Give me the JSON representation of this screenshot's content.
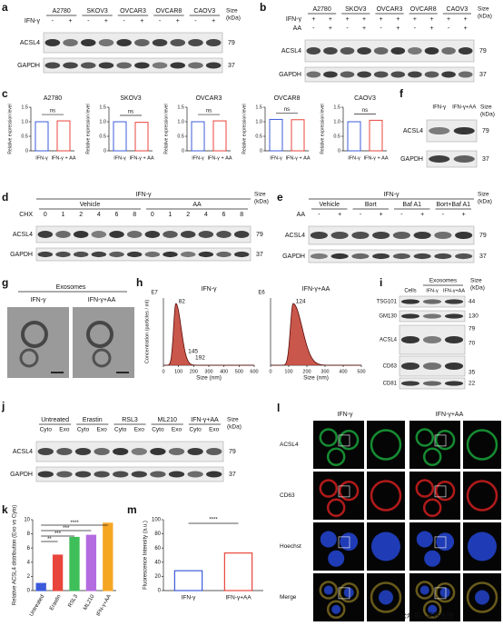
{
  "a": {
    "letter": "a",
    "groups": [
      "A2780",
      "SKOV3",
      "OVCAR3",
      "OVCAR8",
      "CAOV3"
    ],
    "rows": [
      {
        "label": "IFN-γ",
        "cells": [
          "-",
          "+",
          "-",
          "+",
          "-",
          "+",
          "-",
          "+",
          "-",
          "+"
        ]
      }
    ],
    "size_label": [
      "Size",
      "(kDa)"
    ],
    "blots": [
      {
        "label": "ACSL4",
        "size": 79
      },
      {
        "label": "GAPDH",
        "size": 37
      }
    ]
  },
  "b": {
    "letter": "b",
    "groups": [
      "A2780",
      "SKOV3",
      "OVCAR3",
      "OVCAR8",
      "CAOV3"
    ],
    "rows": [
      {
        "label": "IFN-γ",
        "cells": [
          "+",
          "+",
          "+",
          "+",
          "+",
          "+",
          "+",
          "+",
          "+",
          "+"
        ]
      },
      {
        "label": "AA",
        "cells": [
          "-",
          "+",
          "-",
          "+",
          "-",
          "+",
          "-",
          "+",
          "-",
          "+"
        ]
      }
    ],
    "size_label": [
      "Size",
      "(kDa)"
    ],
    "blots": [
      {
        "label": "ACSL4",
        "size": 79
      },
      {
        "label": "GAPDH",
        "size": 37
      }
    ]
  },
  "c": {
    "letter": "c",
    "y_label": "Relative expression level",
    "ylim": [
      0,
      1.5
    ],
    "yticks": [
      0,
      0.5,
      {
        "value": 1,
        "label": "1.0"
      },
      1.5
    ],
    "categories": [
      "IFN-γ",
      "IFN-γ + AA"
    ],
    "colors": [
      "#3b5bdb",
      "#e8453c"
    ],
    "charts": [
      {
        "title": "A2780",
        "values": [
          1.0,
          1.03
        ],
        "annotation": "ns"
      },
      {
        "title": "SKOV3",
        "values": [
          1.0,
          0.98
        ],
        "annotation": "ns"
      },
      {
        "title": "OVCAR3",
        "values": [
          1.0,
          1.03
        ],
        "annotation": "ns"
      },
      {
        "title": "OVCAR8",
        "values": [
          1.08,
          1.07
        ],
        "annotation": "ns"
      },
      {
        "title": "CAOV3",
        "values": [
          1.0,
          1.05
        ],
        "annotation": "ns"
      }
    ]
  },
  "d": {
    "letter": "d",
    "header": "IFN-γ",
    "groups": [
      "Vehicle",
      "AA"
    ],
    "rows": [
      {
        "label": "CHX",
        "cells": [
          0,
          1,
          2,
          4,
          6,
          8,
          0,
          1,
          2,
          4,
          6,
          8
        ]
      }
    ],
    "size_label": [
      "Size",
      "(kDa)"
    ],
    "blots": [
      {
        "label": "ACSL4",
        "size": 79
      },
      {
        "label": "GAPDH",
        "size": 37
      }
    ]
  },
  "e": {
    "letter": "e",
    "header": "IFN-γ",
    "groups": [
      "Vehicle",
      "Bort",
      "Baf A1",
      "Bort+Baf A1"
    ],
    "rows": [
      {
        "label": "AA",
        "cells": [
          "-",
          "+",
          "-",
          "+",
          "-",
          "+",
          "-",
          "+"
        ]
      }
    ],
    "size_label": [
      "Size",
      "(kDa)"
    ],
    "blots": [
      {
        "label": "ACSL4",
        "size": 79
      },
      {
        "label": "GAPDH",
        "size": 37
      }
    ]
  },
  "f": {
    "letter": "f",
    "groups": [
      "IFN-γ",
      "IFN-γ+AA"
    ],
    "size_label": [
      "Size",
      "(kDa)"
    ],
    "blots": [
      {
        "label": "ACSL4",
        "size": 79
      },
      {
        "label": "GAPDH",
        "size": 37
      }
    ]
  },
  "g": {
    "letter": "g",
    "title": "Exosomes",
    "columns": [
      "IFN-γ",
      "IFN-γ+AA"
    ]
  },
  "h": {
    "letter": "h",
    "y_label": "Concentration (particles / ml)",
    "x_label": "Size (nm)",
    "plots": [
      {
        "title": "IFN-γ",
        "exponent": "E7",
        "peaks": [
          82,
          145,
          192
        ],
        "xlim": [
          0,
          600
        ],
        "xticks": [
          0,
          100,
          200,
          300,
          400,
          500,
          600
        ]
      },
      {
        "title": "IFN-γ+AA",
        "exponent": "E6",
        "peaks": [
          124
        ],
        "xlim": [
          0,
          500
        ],
        "xticks": [
          0,
          100,
          200,
          300,
          400,
          500
        ]
      }
    ]
  },
  "i": {
    "letter": "i",
    "cells_label": "Cells",
    "exo_label": "Exosomes",
    "exo_columns": [
      "IFN-γ",
      "IFN-γ+AA"
    ],
    "size_label": [
      "Size",
      "(kDa)"
    ],
    "blots": [
      "TSG101",
      "GM130",
      "ACSL4",
      "CD63",
      "CD81"
    ],
    "sizes": [
      44,
      130,
      79,
      70,
      35,
      22
    ]
  },
  "j": {
    "letter": "j",
    "groups": [
      "Untreated",
      "Erastin",
      "RSL3",
      "ML210",
      "IFN-γ+AA"
    ],
    "rows": [
      {
        "cells": [
          "Cyto",
          "Exo",
          "Cyto",
          "Exo",
          "Cyto",
          "Exo",
          "Cyto",
          "Exo",
          "Cyto",
          "Exo"
        ]
      }
    ],
    "size_label": [
      "Size",
      "(kDa)"
    ],
    "blots": [
      {
        "label": "ACSL4",
        "size": 79
      },
      {
        "label": "GAPDH",
        "size": 37
      }
    ]
  },
  "k": {
    "letter": "k",
    "y_label": "Relative ACSL4 distribution (Exo vs Cyto)",
    "ylim": [
      0,
      10
    ],
    "yticks": [
      0,
      2,
      4,
      6,
      8,
      10
    ],
    "categories": [
      "Untreated",
      "Erastin",
      "RSL3",
      "ML210",
      "IFN-γ+AA"
    ],
    "values": [
      1,
      5,
      7.5,
      7.8,
      9.5
    ],
    "colors": [
      "#3b5bdb",
      "#e8453c",
      "#3fbf5a",
      "#b46be0",
      "#f5a623"
    ],
    "annotations": [
      "**",
      "***",
      "***",
      "****"
    ]
  },
  "l": {
    "letter": "l",
    "columns": [
      "IFN-γ",
      "IFN-γ+AA"
    ],
    "rows": [
      "ACSL4",
      "CD63",
      "Hoechst",
      "Merge"
    ],
    "watermark": "公众号 · 英拜生物"
  },
  "m": {
    "letter": "m",
    "y_label": "Fluorescence Intensity (a.u.)",
    "ylim": [
      0,
      100
    ],
    "yticks": [
      0,
      20,
      40,
      60,
      80,
      100
    ],
    "categories": [
      "IFN-γ",
      "IFN-γ+AA"
    ],
    "values": [
      28,
      53
    ],
    "colors": [
      "#3b5bdb",
      "#e8453c"
    ],
    "annotation": "****"
  }
}
